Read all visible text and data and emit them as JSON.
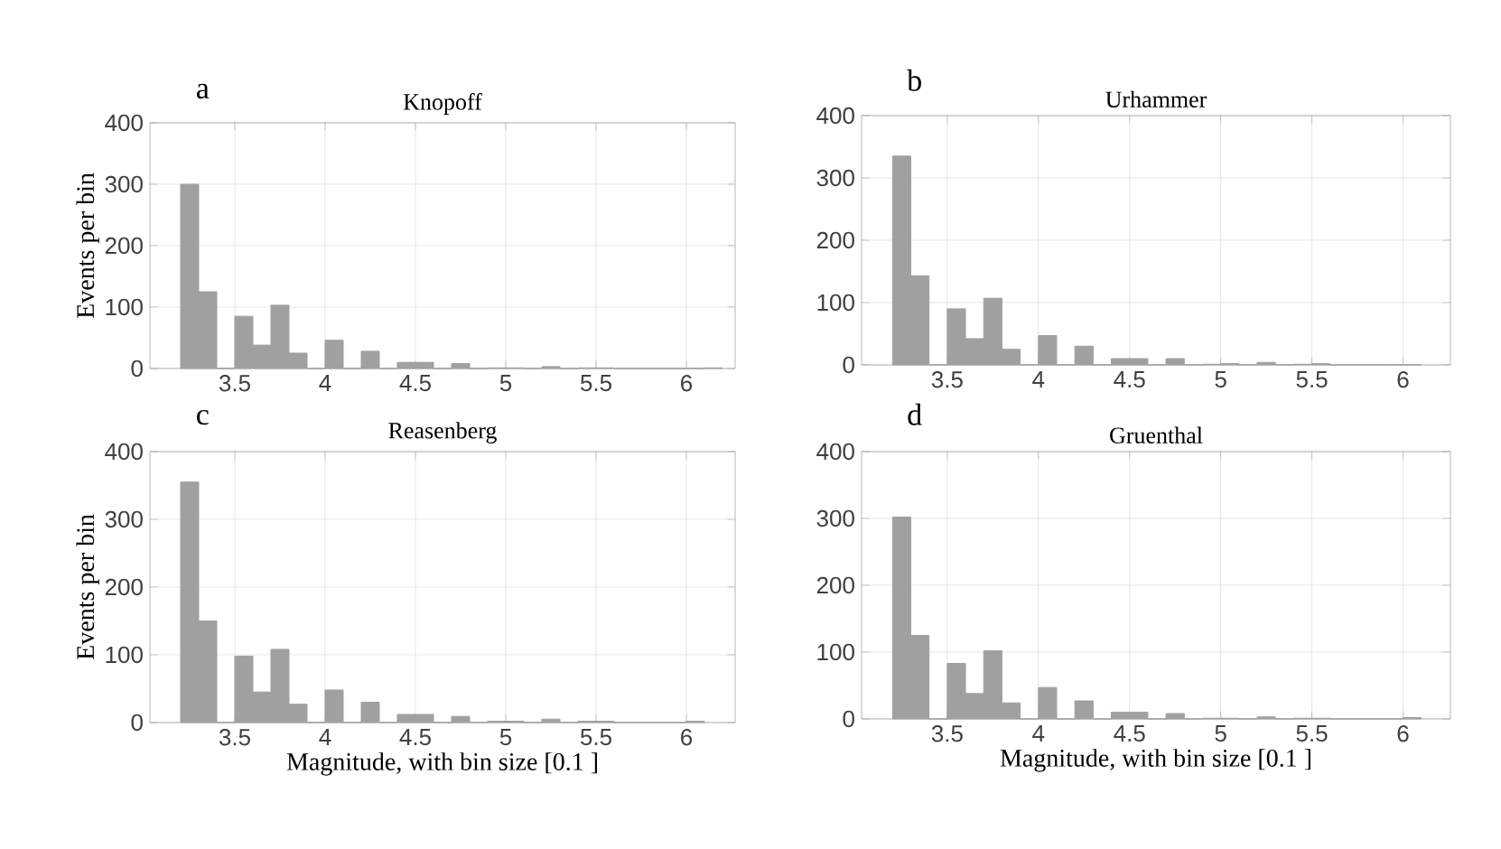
{
  "chart_data": [
    {
      "type": "histogram",
      "title": "Knopoff",
      "annotations": [
        "a"
      ],
      "ylabel": "Events per bin",
      "color": "#a0a0a0",
      "grid": true,
      "xlim": [
        3.03,
        6.27
      ],
      "ylim": [
        0,
        400
      ],
      "xticks": [
        3.5,
        4,
        4.5,
        5,
        5.5,
        6
      ],
      "yticks": [
        0,
        100,
        200,
        300,
        400
      ],
      "bins": [
        3.2,
        3.3,
        3.4,
        3.5,
        3.6,
        3.7,
        3.8,
        3.9,
        4.0,
        4.1,
        4.2,
        4.3,
        4.4,
        4.5,
        4.6,
        4.7,
        4.8,
        4.9,
        5.0,
        5.1,
        5.2,
        5.3,
        5.4,
        5.5,
        5.6,
        5.7,
        5.8,
        5.9,
        6.0,
        6.1,
        6.2
      ],
      "values": [
        300,
        125,
        0,
        85,
        38,
        103,
        25,
        0,
        46,
        0,
        28,
        0,
        10,
        10,
        0,
        8,
        0,
        1,
        1,
        0,
        3,
        0,
        1,
        1,
        0,
        0,
        0,
        0,
        0,
        1
      ]
    },
    {
      "type": "histogram",
      "title": "Urhammer",
      "annotations": [
        "b"
      ],
      "color": "#a0a0a0",
      "grid": true,
      "xlim": [
        3.03,
        6.26
      ],
      "ylim": [
        0,
        400
      ],
      "xticks": [
        3.5,
        4,
        4.5,
        5,
        5.5,
        6
      ],
      "yticks": [
        0,
        100,
        200,
        300,
        400
      ],
      "bins": [
        3.2,
        3.3,
        3.4,
        3.5,
        3.6,
        3.7,
        3.8,
        3.9,
        4.0,
        4.1,
        4.2,
        4.3,
        4.4,
        4.5,
        4.6,
        4.7,
        4.8,
        4.9,
        5.0,
        5.1,
        5.2,
        5.3,
        5.4,
        5.5,
        5.6,
        5.7,
        5.8,
        5.9,
        6.0,
        6.1
      ],
      "values": [
        335,
        143,
        0,
        90,
        42,
        107,
        25,
        0,
        47,
        0,
        30,
        0,
        10,
        10,
        0,
        10,
        0,
        1,
        2,
        0,
        4,
        0,
        1,
        2,
        0,
        0,
        0,
        0,
        0
      ]
    },
    {
      "type": "histogram",
      "title": "Reasenberg",
      "annotations": [
        "c"
      ],
      "xlabel": "Magnitude, with bin size  [0.1 ]",
      "ylabel": "Events per bin",
      "color": "#a0a0a0",
      "grid": true,
      "xlim": [
        3.03,
        6.27
      ],
      "ylim": [
        0,
        400
      ],
      "xticks": [
        3.5,
        4,
        4.5,
        5,
        5.5,
        6
      ],
      "yticks": [
        0,
        100,
        200,
        300,
        400
      ],
      "bins": [
        3.2,
        3.3,
        3.4,
        3.5,
        3.6,
        3.7,
        3.8,
        3.9,
        4.0,
        4.1,
        4.2,
        4.3,
        4.4,
        4.5,
        4.6,
        4.7,
        4.8,
        4.9,
        5.0,
        5.1,
        5.2,
        5.3,
        5.4,
        5.5,
        5.6,
        5.7,
        5.8,
        5.9,
        6.0,
        6.1
      ],
      "values": [
        355,
        150,
        0,
        98,
        45,
        108,
        27,
        0,
        48,
        0,
        30,
        0,
        12,
        12,
        0,
        9,
        0,
        2,
        2,
        0,
        5,
        0,
        2,
        2,
        0,
        0,
        0,
        0,
        2
      ]
    },
    {
      "type": "histogram",
      "title": "Gruenthal",
      "annotations": [
        "d"
      ],
      "xlabel": "Magnitude, with bin size  [0.1 ]",
      "color": "#a0a0a0",
      "grid": true,
      "xlim": [
        3.03,
        6.26
      ],
      "ylim": [
        0,
        400
      ],
      "xticks": [
        3.5,
        4,
        4.5,
        5,
        5.5,
        6
      ],
      "yticks": [
        0,
        100,
        200,
        300,
        400
      ],
      "bins": [
        3.2,
        3.3,
        3.4,
        3.5,
        3.6,
        3.7,
        3.8,
        3.9,
        4.0,
        4.1,
        4.2,
        4.3,
        4.4,
        4.5,
        4.6,
        4.7,
        4.8,
        4.9,
        5.0,
        5.1,
        5.2,
        5.3,
        5.4,
        5.5,
        5.6,
        5.7,
        5.8,
        5.9,
        6.0,
        6.1
      ],
      "values": [
        302,
        125,
        0,
        83,
        38,
        102,
        24,
        0,
        47,
        0,
        27,
        0,
        10,
        10,
        0,
        8,
        0,
        1,
        1,
        0,
        3,
        0,
        1,
        1,
        0,
        0,
        0,
        0,
        2
      ]
    }
  ]
}
